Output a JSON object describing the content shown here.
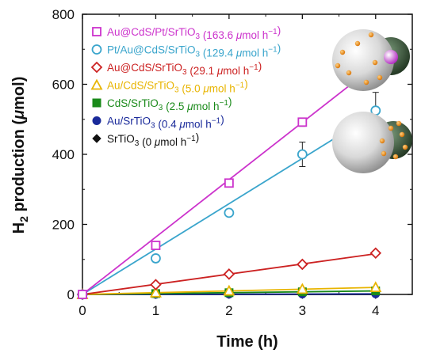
{
  "chart_data": {
    "type": "scatter",
    "xlabel": "Time (h)",
    "ylabel": "H2 production (μmol)",
    "xlim": [
      0,
      4.5
    ],
    "ylim": [
      0,
      800
    ],
    "xticks": [
      "0",
      "1",
      "2",
      "3",
      "4"
    ],
    "yticks": [
      "0",
      "200",
      "400",
      "600",
      "800"
    ],
    "legend_position": "top-left",
    "grid": false,
    "series": [
      {
        "name": "Au@CdS/Pt/SrTiO3 (163.6 μmol h−1)",
        "color": "#cc33cc",
        "marker": "square",
        "x": [
          0,
          1,
          2,
          3,
          4
        ],
        "y": [
          0,
          140,
          318,
          492,
          665
        ],
        "fit": [
          [
            0,
            0
          ],
          [
            4,
            655
          ]
        ],
        "err": [
          0,
          0,
          0,
          12,
          25
        ]
      },
      {
        "name": "Pt/Au@CdS/SrTiO3 (129.4 μmol h−1)",
        "color": "#3aa5cc",
        "marker": "circle",
        "x": [
          0,
          1,
          2,
          3,
          4
        ],
        "y": [
          0,
          103,
          233,
          400,
          525
        ],
        "fit": [
          [
            0,
            0
          ],
          [
            4,
            518
          ]
        ],
        "err": [
          0,
          0,
          0,
          35,
          52
        ]
      },
      {
        "name": "Au@CdS/SrTiO3 (29.1 μmol h−1)",
        "color": "#cc2222",
        "marker": "diamond",
        "x": [
          0,
          1,
          2,
          3,
          4
        ],
        "y": [
          0,
          28,
          58,
          86,
          118
        ],
        "fit": [
          [
            0,
            0
          ],
          [
            4,
            116
          ]
        ],
        "err": [
          0,
          0,
          0,
          0,
          0
        ]
      },
      {
        "name": "Au/CdS/SrTiO3 (5.0 μmol h−1)",
        "color": "#e8b400",
        "marker": "triangle",
        "x": [
          0,
          1,
          2,
          3,
          4
        ],
        "y": [
          0,
          5,
          10,
          15,
          20
        ],
        "fit": [
          [
            0,
            0
          ],
          [
            4,
            20
          ]
        ],
        "err": [
          0,
          0,
          0,
          0,
          0
        ]
      },
      {
        "name": "CdS/SrTiO3 (2.5 μmol h−1)",
        "color": "#1a8a1a",
        "marker": "square-filled",
        "x": [
          0,
          1,
          2,
          3,
          4
        ],
        "y": [
          0,
          2.5,
          5,
          7.5,
          10
        ],
        "fit": [
          [
            0,
            0
          ],
          [
            4,
            10
          ]
        ],
        "err": [
          0,
          0,
          0,
          0,
          0
        ]
      },
      {
        "name": "Au/SrTiO3 (0.4 μmol h−1)",
        "color": "#1a2a9a",
        "marker": "circle-filled",
        "x": [
          0,
          1,
          2,
          3,
          4
        ],
        "y": [
          0,
          0.4,
          0.8,
          1.2,
          1.6
        ],
        "fit": [
          [
            0,
            0
          ],
          [
            4,
            1.6
          ]
        ],
        "err": [
          0,
          0,
          0,
          0,
          0
        ]
      },
      {
        "name": "SrTiO3 (0 μmol h−1)",
        "color": "#111111",
        "marker": "diamond-filled",
        "x": [
          0,
          1,
          2,
          3,
          4
        ],
        "y": [
          0,
          0,
          0,
          0,
          0
        ],
        "fit": [
          [
            0,
            0
          ],
          [
            4,
            0
          ]
        ],
        "err": [
          0,
          0,
          0,
          0,
          0
        ]
      }
    ]
  }
}
